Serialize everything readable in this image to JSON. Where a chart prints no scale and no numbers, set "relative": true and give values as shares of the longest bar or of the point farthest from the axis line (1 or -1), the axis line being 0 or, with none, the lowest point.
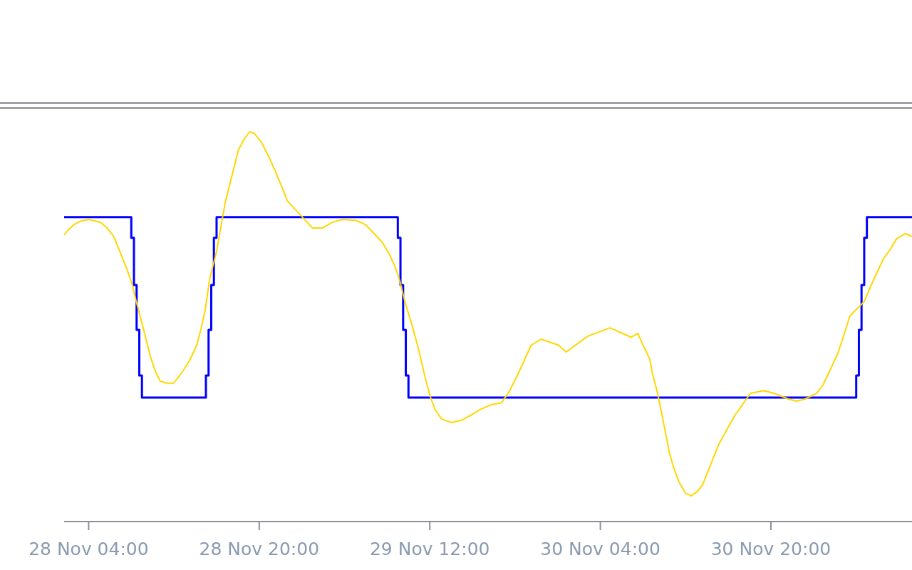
{
  "chart_data": {
    "type": "line",
    "relative": true,
    "xlim": [
      "--11-28T01:42",
      "--12-01T09:14"
    ],
    "xticks": [
      {
        "value": "--11-28T04:00",
        "label": "28 Nov 04:00"
      },
      {
        "value": "--11-28T20:00",
        "label": "28 Nov 20:00"
      },
      {
        "value": "--11-29T12:00",
        "label": "29 Nov 12:00"
      },
      {
        "value": "--11-30T04:00",
        "label": "30 Nov 04:00"
      },
      {
        "value": "--11-30T20:00",
        "label": "30 Nov 20:00"
      }
    ],
    "series": [
      {
        "type": "step",
        "color": "#0000ff",
        "x": [
          "--11-28T01:42",
          "--11-28T08:00",
          "--11-28T08:15",
          "--11-28T08:30",
          "--11-28T08:45",
          "--11-28T09:00",
          "--11-28T15:00",
          "--11-28T15:15",
          "--11-28T15:30",
          "--11-28T15:45",
          "--11-28T16:00",
          "--11-29T09:00",
          "--11-29T09:15",
          "--11-29T09:30",
          "--11-29T09:45",
          "--11-29T10:00",
          "--12-01T04:00",
          "--12-01T04:15",
          "--12-01T04:30",
          "--12-01T04:45",
          "--12-01T05:00",
          "--12-01T09:14"
        ],
        "values": [
          0.781,
          0.728,
          0.607,
          0.492,
          0.375,
          0.318,
          0.375,
          0.492,
          0.607,
          0.728,
          0.781,
          0.728,
          0.607,
          0.492,
          0.375,
          0.318,
          0.375,
          0.492,
          0.607,
          0.728,
          0.781,
          0.781
        ]
      },
      {
        "type": "line",
        "color": "#ffd700",
        "x": [
          "--11-28T01:42",
          "--11-28T02:08",
          "--11-28T02:38",
          "--11-28T03:15",
          "--11-28T04:00",
          "--11-28T05:07",
          "--11-28T05:44",
          "--11-28T06:22",
          "--11-28T06:59",
          "--11-28T07:36",
          "--11-28T08:06",
          "--11-28T08:25",
          "--11-28T08:51",
          "--11-28T09:17",
          "--11-28T09:47",
          "--11-28T10:17",
          "--11-28T10:43",
          "--11-28T11:20",
          "--11-28T11:57",
          "--11-28T12:23",
          "--11-28T12:53",
          "--11-28T13:30",
          "--11-28T14:08",
          "--11-28T14:34",
          "--11-28T14:56",
          "--11-28T15:22",
          "--11-28T16:00",
          "--11-28T16:11",
          "--11-28T16:48",
          "--11-28T17:33",
          "--11-28T18:03",
          "--11-28T18:36",
          "--11-28T19:06",
          "--11-28T19:32",
          "--11-28T20:13",
          "--11-28T20:58",
          "--11-28T21:35",
          "--11-28T22:12",
          "--11-28T22:38",
          "--11-28T23:45",
          "--11-29T01:00",
          "--11-29T01:56",
          "--11-29T02:52",
          "--11-29T03:48",
          "--11-29T05:02",
          "--11-29T05:58",
          "--11-29T06:36",
          "--11-29T07:31",
          "--11-29T08:09",
          "--11-29T08:46",
          "--11-29T09:12",
          "--11-29T09:42",
          "--11-29T10:19",
          "--11-29T10:57",
          "--11-29T11:34",
          "--11-29T12:00",
          "--11-29T12:30",
          "--11-29T13:07",
          "--11-29T14:03",
          "--11-29T14:59",
          "--11-29T15:55",
          "--11-29T16:51",
          "--11-29T17:47",
          "--11-29T18:43",
          "--11-29T19:27",
          "--11-29T20:16",
          "--11-29T20:53",
          "--11-29T21:30",
          "--11-29T22:26",
          "--11-30T00:03",
          "--11-30T00:48",
          "--11-30T02:47",
          "--11-30T04:54",
          "--11-30T06:23",
          "--11-30T06:53",
          "--11-30T07:31",
          "--11-30T08:00",
          "--11-30T08:38",
          "--11-30T08:53",
          "--11-30T09:22",
          "--11-30T09:45",
          "--11-30T10:07",
          "--11-30T10:29",
          "--11-30T10:52",
          "--11-30T11:22",
          "--11-30T11:59",
          "--11-30T12:32",
          "--11-30T13:06",
          "--11-30T13:36",
          "--11-30T14:21",
          "--11-30T15:05",
          "--11-30T15:50",
          "--11-30T16:35",
          "--11-30T17:20",
          "--11-30T18:04",
          "--11-30T19:19",
          "--11-30T20:18",
          "--11-30T21:40",
          "--11-30T22:25",
          "--11-30T23:10",
          "--12-01T00:17",
          "--12-01T00:54",
          "--12-01T01:32",
          "--12-01T02:16",
          "--12-01T02:54",
          "--12-01T03:24",
          "--12-01T04:46",
          "--12-01T05:19",
          "--12-01T05:56",
          "--12-01T06:34",
          "--12-01T07:11",
          "--12-01T07:48",
          "--12-01T08:37",
          "--12-01T09:14"
        ],
        "values": [
          0.735,
          0.75,
          0.762,
          0.771,
          0.775,
          0.768,
          0.753,
          0.731,
          0.689,
          0.647,
          0.607,
          0.57,
          0.525,
          0.479,
          0.424,
          0.384,
          0.36,
          0.355,
          0.355,
          0.369,
          0.388,
          0.415,
          0.452,
          0.497,
          0.543,
          0.625,
          0.693,
          0.722,
          0.817,
          0.899,
          0.954,
          0.982,
          1.0,
          0.996,
          0.973,
          0.932,
          0.894,
          0.854,
          0.823,
          0.79,
          0.753,
          0.753,
          0.768,
          0.775,
          0.773,
          0.762,
          0.744,
          0.717,
          0.689,
          0.653,
          0.616,
          0.561,
          0.506,
          0.442,
          0.369,
          0.324,
          0.287,
          0.263,
          0.254,
          0.26,
          0.274,
          0.289,
          0.3,
          0.305,
          0.333,
          0.378,
          0.415,
          0.452,
          0.468,
          0.453,
          0.435,
          0.475,
          0.497,
          0.479,
          0.473,
          0.483,
          0.453,
          0.417,
          0.38,
          0.329,
          0.278,
          0.227,
          0.176,
          0.139,
          0.102,
          0.073,
          0.066,
          0.077,
          0.095,
          0.146,
          0.197,
          0.234,
          0.271,
          0.3,
          0.329,
          0.336,
          0.329,
          0.314,
          0.309,
          0.314,
          0.329,
          0.351,
          0.388,
          0.431,
          0.483,
          0.527,
          0.565,
          0.601,
          0.638,
          0.675,
          0.698,
          0.726,
          0.739,
          0.731
        ]
      }
    ]
  }
}
